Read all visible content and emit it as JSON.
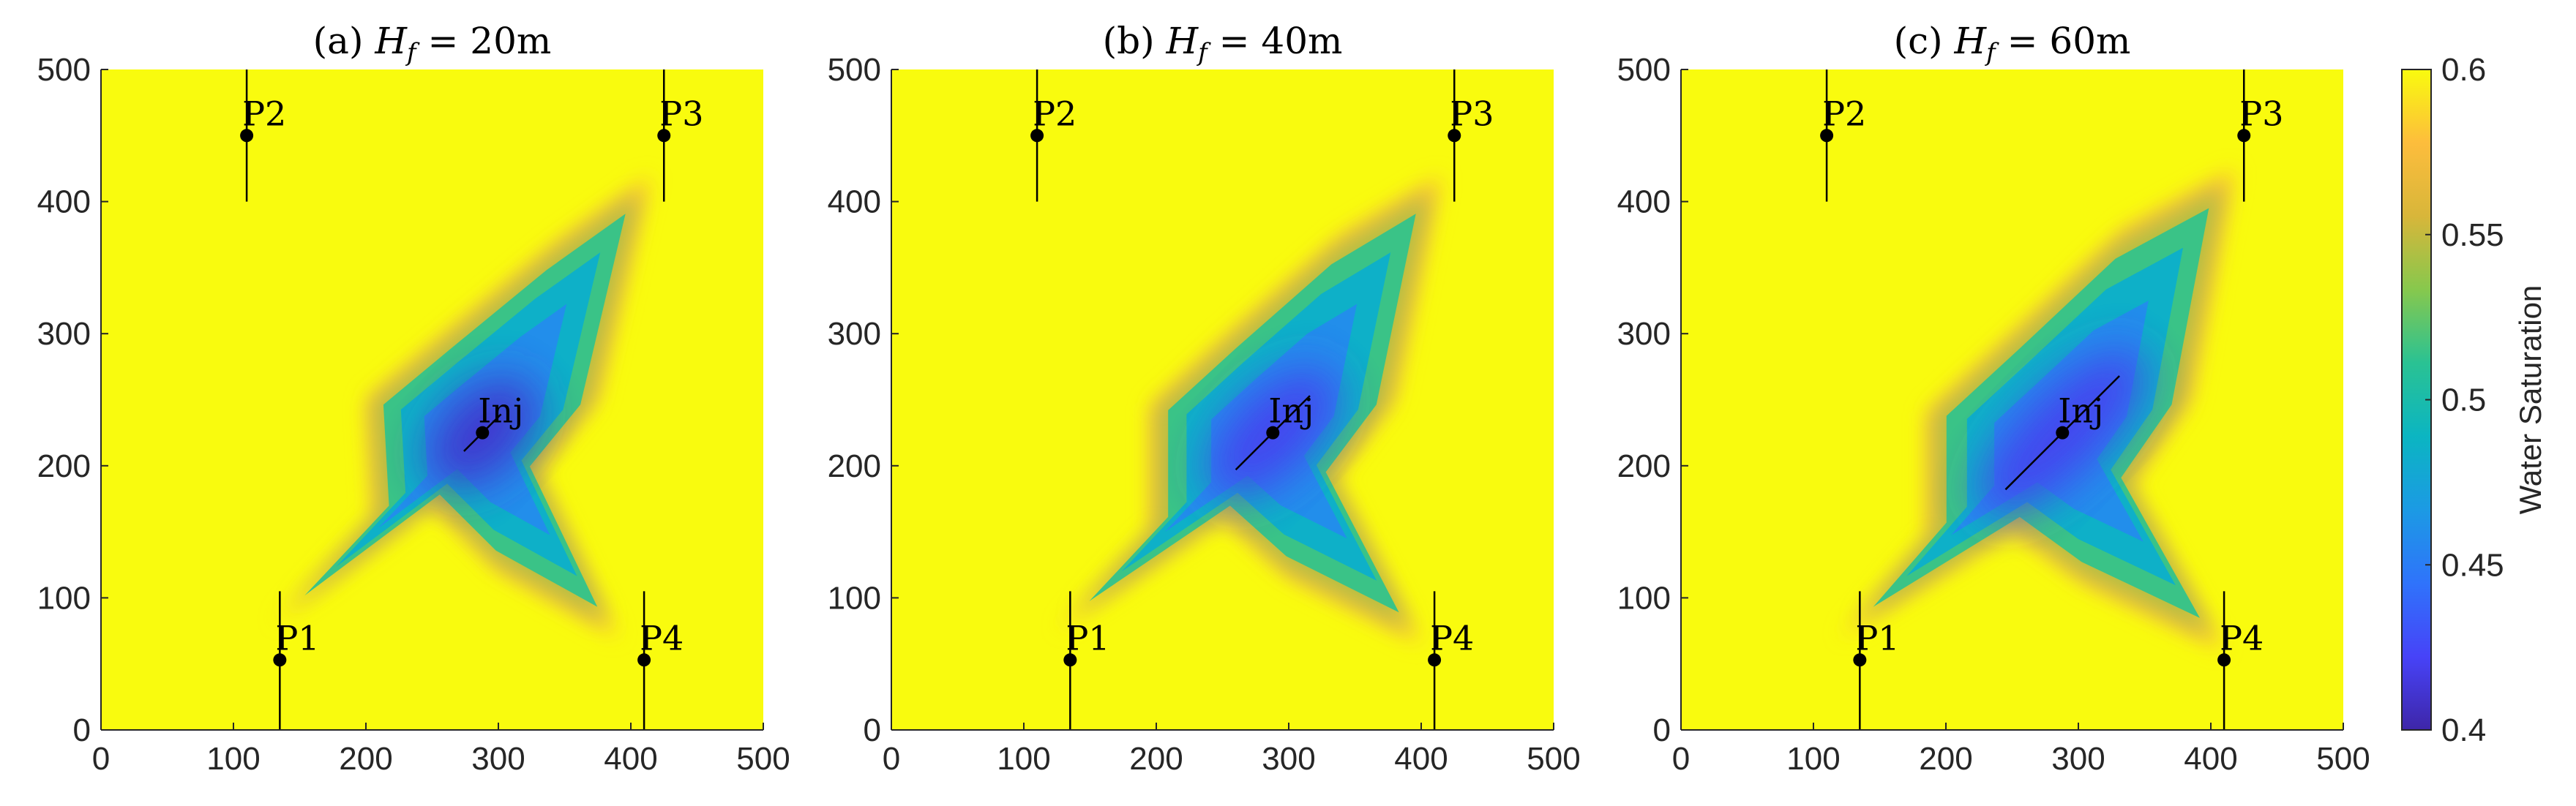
{
  "chart_data": {
    "type": "heatmap",
    "colorbar": {
      "label": "Water Saturation",
      "min": 0.4,
      "max": 0.6,
      "ticks": [
        0.4,
        0.45,
        0.5,
        0.55,
        0.6
      ],
      "tick_labels": [
        "0.4",
        "0.45",
        "0.5",
        "0.55",
        "0.6"
      ],
      "colormap": "parula",
      "stops": [
        "#3e26a8",
        "#4743f8",
        "#2f73fb",
        "#1c9ae4",
        "#0bb5c2",
        "#2ac293",
        "#87c84d",
        "#d8b63a",
        "#fdbd3c",
        "#f9fb0e"
      ]
    },
    "panels": [
      {
        "title": "(a) H_f = 20m",
        "title_prefix": "(a)",
        "title_var": "H",
        "title_sub": "f",
        "title_value": "= 20m",
        "fracture_half_length": 20,
        "xlim": [
          0,
          500
        ],
        "ylim": [
          0,
          500
        ],
        "xticks": [
          0,
          100,
          200,
          300,
          400,
          500
        ],
        "yticks": [
          0,
          100,
          200,
          300,
          400,
          500
        ],
        "tick_labels_x": [
          "0",
          "100",
          "200",
          "300",
          "400",
          "500"
        ],
        "tick_labels_y": [
          "0",
          "100",
          "200",
          "300",
          "400",
          "500"
        ],
        "wells": [
          {
            "name": "P1",
            "x": 135,
            "y": 53,
            "line": [
              [
                135,
                0
              ],
              [
                135,
                105
              ]
            ]
          },
          {
            "name": "P2",
            "x": 110,
            "y": 450,
            "line": [
              [
                110,
                400
              ],
              [
                110,
                500
              ]
            ]
          },
          {
            "name": "P3",
            "x": 425,
            "y": 450,
            "line": [
              [
                425,
                400
              ],
              [
                425,
                500
              ]
            ]
          },
          {
            "name": "P4",
            "x": 410,
            "y": 53,
            "line": [
              [
                410,
                0
              ],
              [
                410,
                105
              ]
            ]
          },
          {
            "name": "Inj",
            "x": 288,
            "y": 225,
            "line": [
              [
                274,
                211
              ],
              [
                302,
                239
              ]
            ]
          }
        ],
        "plume": {
          "min_saturation": 0.41,
          "front": [
            [
              130,
              80
            ],
            [
              205,
              160
            ],
            [
              200,
              250
            ],
            [
              260,
              300
            ],
            [
              345,
              370
            ],
            [
              415,
              420
            ],
            [
              375,
              250
            ],
            [
              330,
              195
            ],
            [
              390,
              70
            ],
            [
              300,
              120
            ],
            [
              250,
              170
            ]
          ]
        }
      },
      {
        "title": "(b) H_f = 40m",
        "title_prefix": "(b)",
        "title_var": "H",
        "title_sub": "f",
        "title_value": "= 40m",
        "fracture_half_length": 40,
        "xlim": [
          0,
          500
        ],
        "ylim": [
          0,
          500
        ],
        "xticks": [
          0,
          100,
          200,
          300,
          400,
          500
        ],
        "yticks": [
          0,
          100,
          200,
          300,
          400,
          500
        ],
        "tick_labels_x": [
          "0",
          "100",
          "200",
          "300",
          "400",
          "500"
        ],
        "tick_labels_y": [
          "0",
          "100",
          "200",
          "300",
          "400",
          "500"
        ],
        "wells": [
          {
            "name": "P1",
            "x": 135,
            "y": 53,
            "line": [
              [
                135,
                0
              ],
              [
                135,
                105
              ]
            ]
          },
          {
            "name": "P2",
            "x": 110,
            "y": 450,
            "line": [
              [
                110,
                400
              ],
              [
                110,
                500
              ]
            ]
          },
          {
            "name": "P3",
            "x": 425,
            "y": 450,
            "line": [
              [
                425,
                400
              ],
              [
                425,
                500
              ]
            ]
          },
          {
            "name": "P4",
            "x": 410,
            "y": 53,
            "line": [
              [
                410,
                0
              ],
              [
                410,
                105
              ]
            ]
          },
          {
            "name": "Inj",
            "x": 288,
            "y": 225,
            "line": [
              [
                260,
                197
              ],
              [
                316,
                253
              ]
            ]
          }
        ],
        "plume": {
          "min_saturation": 0.42,
          "front": [
            [
              125,
              75
            ],
            [
              195,
              150
            ],
            [
              195,
              245
            ],
            [
              255,
              300
            ],
            [
              340,
              375
            ],
            [
              415,
              420
            ],
            [
              380,
              250
            ],
            [
              335,
              190
            ],
            [
              400,
              65
            ],
            [
              300,
              115
            ],
            [
              250,
              160
            ]
          ]
        }
      },
      {
        "title": "(c) H_f = 60m",
        "title_prefix": "(c)",
        "title_var": "H",
        "title_sub": "f",
        "title_value": "= 60m",
        "fracture_half_length": 60,
        "xlim": [
          0,
          500
        ],
        "ylim": [
          0,
          500
        ],
        "xticks": [
          0,
          100,
          200,
          300,
          400,
          500
        ],
        "yticks": [
          0,
          100,
          200,
          300,
          400,
          500
        ],
        "tick_labels_x": [
          "0",
          "100",
          "200",
          "300",
          "400",
          "500"
        ],
        "tick_labels_y": [
          "0",
          "100",
          "200",
          "300",
          "400",
          "500"
        ],
        "wells": [
          {
            "name": "P1",
            "x": 135,
            "y": 53,
            "line": [
              [
                135,
                0
              ],
              [
                135,
                105
              ]
            ]
          },
          {
            "name": "P2",
            "x": 110,
            "y": 450,
            "line": [
              [
                110,
                400
              ],
              [
                110,
                500
              ]
            ]
          },
          {
            "name": "P3",
            "x": 425,
            "y": 450,
            "line": [
              [
                425,
                400
              ],
              [
                425,
                500
              ]
            ]
          },
          {
            "name": "P4",
            "x": 410,
            "y": 53,
            "line": [
              [
                410,
                0
              ],
              [
                410,
                105
              ]
            ]
          },
          {
            "name": "Inj",
            "x": 288,
            "y": 225,
            "line": [
              [
                245,
                182
              ],
              [
                331,
                268
              ]
            ]
          }
        ],
        "plume": {
          "min_saturation": 0.42,
          "front": [
            [
              120,
              70
            ],
            [
              185,
              145
            ],
            [
              185,
              240
            ],
            [
              250,
              300
            ],
            [
              335,
              380
            ],
            [
              418,
              425
            ],
            [
              385,
              250
            ],
            [
              340,
              185
            ],
            [
              410,
              60
            ],
            [
              305,
              110
            ],
            [
              250,
              150
            ]
          ]
        }
      }
    ]
  }
}
